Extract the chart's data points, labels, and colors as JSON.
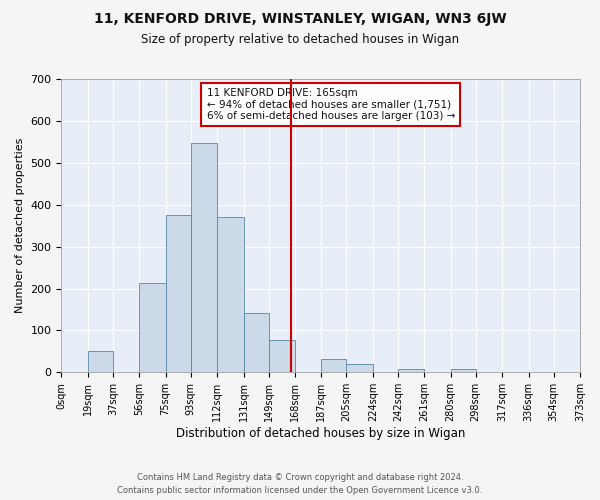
{
  "title": "11, KENFORD DRIVE, WINSTANLEY, WIGAN, WN3 6JW",
  "subtitle": "Size of property relative to detached houses in Wigan",
  "xlabel": "Distribution of detached houses by size in Wigan",
  "ylabel": "Number of detached properties",
  "bar_color": "#ccd9e8",
  "bar_edge_color": "#5588aa",
  "background_color": "#e8eef8",
  "fig_background_color": "#f5f5f5",
  "grid_color": "#ffffff",
  "vline_x": 165,
  "vline_color": "#cc0000",
  "bin_edges": [
    0,
    19,
    37,
    56,
    75,
    93,
    112,
    131,
    149,
    168,
    187,
    205,
    224,
    242,
    261,
    280,
    298,
    317,
    336,
    354,
    373
  ],
  "bin_labels": [
    "0sqm",
    "19sqm",
    "37sqm",
    "56sqm",
    "75sqm",
    "93sqm",
    "112sqm",
    "131sqm",
    "149sqm",
    "168sqm",
    "187sqm",
    "205sqm",
    "224sqm",
    "242sqm",
    "261sqm",
    "280sqm",
    "298sqm",
    "317sqm",
    "336sqm",
    "354sqm",
    "373sqm"
  ],
  "bar_heights": [
    0,
    52,
    0,
    213,
    375,
    548,
    370,
    142,
    77,
    0,
    33,
    20,
    0,
    9,
    0,
    9,
    0,
    0,
    0,
    2
  ],
  "ylim": [
    0,
    700
  ],
  "yticks": [
    0,
    100,
    200,
    300,
    400,
    500,
    600,
    700
  ],
  "annotation_title": "11 KENFORD DRIVE: 165sqm",
  "annotation_line1": "← 94% of detached houses are smaller (1,751)",
  "annotation_line2": "6% of semi-detached houses are larger (103) →",
  "footer1": "Contains HM Land Registry data © Crown copyright and database right 2024.",
  "footer2": "Contains public sector information licensed under the Open Government Licence v3.0."
}
